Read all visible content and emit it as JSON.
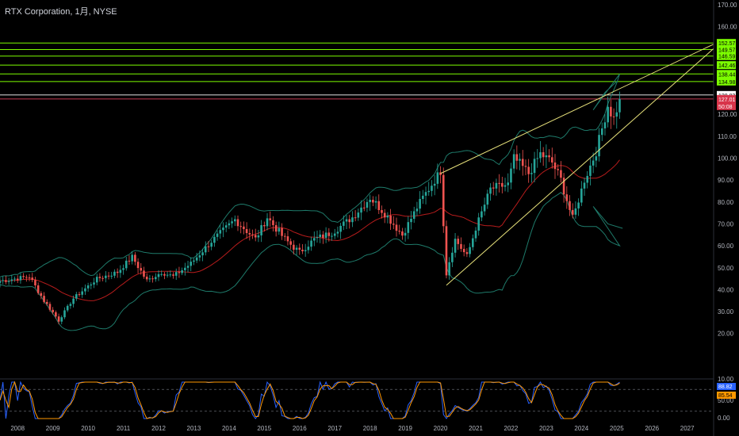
{
  "header": {
    "title": "RTX Corporation, 1月, NYSE"
  },
  "colors": {
    "up": "#26a69a",
    "down": "#ef5350",
    "bb_line": "#1e7a6a",
    "bb_basis": "#b71c1c",
    "wedge": "#e6e07a",
    "level": "#7cfc00",
    "current": "#ff4d6d",
    "stoch_k": "#2962ff",
    "stoch_d": "#ff9800"
  },
  "chart_data": {
    "type": "candlestick",
    "title": "RTX Corporation, 1月, NYSE",
    "x_range": [
      "2008-01",
      "2027-06"
    ],
    "y_range": [
      0,
      170
    ],
    "price_ticks": [
      20,
      30,
      40,
      50,
      60,
      70,
      80,
      90,
      100,
      110,
      120,
      160,
      170
    ],
    "price_tick_labels": [
      "20.00",
      "30.00",
      "40.00",
      "50.00",
      "60.00",
      "70.00",
      "80.00",
      "90.00",
      "100.00",
      "110.00",
      "120.00",
      "160.00",
      "170.00"
    ],
    "year_labels": [
      "2008",
      "2009",
      "2010",
      "2011",
      "2012",
      "2013",
      "2014",
      "2015",
      "2016",
      "2017",
      "2018",
      "2019",
      "2020",
      "2021",
      "2022",
      "2023",
      "2024",
      "2025",
      "2026",
      "2027"
    ],
    "anchors": [
      [
        "2007-07",
        44
      ],
      [
        "2008-05",
        46
      ],
      [
        "2008-10",
        35
      ],
      [
        "2009-03",
        26
      ],
      [
        "2009-08",
        36
      ],
      [
        "2010-04",
        45
      ],
      [
        "2010-11",
        48
      ],
      [
        "2011-04",
        55
      ],
      [
        "2011-09",
        44
      ],
      [
        "2012-02",
        48
      ],
      [
        "2012-06",
        46
      ],
      [
        "2012-12",
        52
      ],
      [
        "2013-07",
        62
      ],
      [
        "2014-03",
        72
      ],
      [
        "2014-10",
        63
      ],
      [
        "2015-02",
        73
      ],
      [
        "2015-08",
        63
      ],
      [
        "2016-01",
        57
      ],
      [
        "2016-06",
        63
      ],
      [
        "2016-12",
        66
      ],
      [
        "2017-07",
        73
      ],
      [
        "2018-01",
        82
      ],
      [
        "2018-06",
        75
      ],
      [
        "2018-12",
        65
      ],
      [
        "2019-06",
        80
      ],
      [
        "2020-01",
        94
      ],
      [
        "2020-03",
        48
      ],
      [
        "2020-06",
        63
      ],
      [
        "2020-10",
        55
      ],
      [
        "2021-01",
        68
      ],
      [
        "2021-06",
        86
      ],
      [
        "2021-12",
        88
      ],
      [
        "2022-02",
        100
      ],
      [
        "2022-07",
        93
      ],
      [
        "2022-11",
        102
      ],
      [
        "2023-03",
        98
      ],
      [
        "2023-06",
        90
      ],
      [
        "2023-10",
        72
      ],
      [
        "2024-02",
        90
      ],
      [
        "2024-06",
        103
      ],
      [
        "2024-10",
        124
      ],
      [
        "2024-12",
        118
      ],
      [
        "2025-02",
        127
      ]
    ],
    "bollinger": {
      "upper_tail": [
        [
          "2024-05",
          122
        ],
        [
          "2024-09",
          130
        ],
        [
          "2025-01",
          135
        ]
      ],
      "lower_tail": [
        [
          "2024-05",
          78
        ],
        [
          "2024-10",
          70
        ],
        [
          "2025-03",
          68
        ]
      ]
    },
    "wedge_lines": [
      {
        "from": [
          "2020-03",
          42
        ],
        "to": [
          "2027-10",
          150
        ]
      },
      {
        "from": [
          "2020-01",
          93
        ],
        "to": [
          "2027-10",
          152
        ]
      }
    ],
    "levels": [
      152.57,
      149.57,
      146.59,
      142.46,
      138.44,
      134.98
    ],
    "level_labels": [
      "152.57",
      "149.57",
      "146.59",
      "142.46",
      "138.44",
      "134.98"
    ],
    "current_price": 127.01,
    "current_price_label": "127.01",
    "countdown_label": "50:08",
    "prev_close": 128.83,
    "prev_close_label": "128.83",
    "stochastic": {
      "k_label": "88.82",
      "d_label": "85.54",
      "ticks": [
        "10.00",
        "0.00",
        "50.00"
      ],
      "upper": 80,
      "lower": 20,
      "range": [
        0,
        100
      ]
    }
  }
}
